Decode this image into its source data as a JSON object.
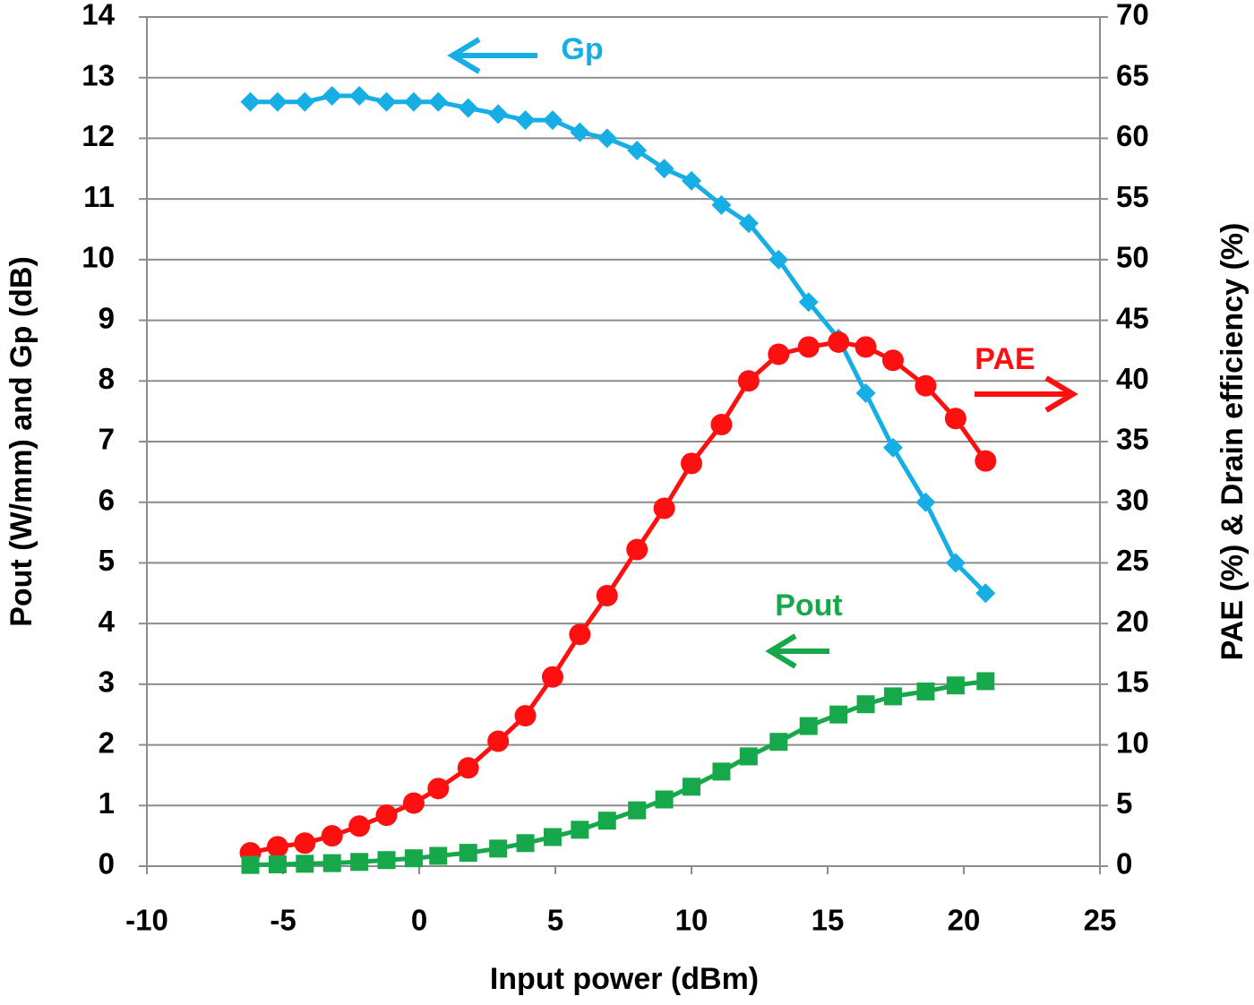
{
  "chart_data": {
    "type": "line",
    "x_label": "Input power (dBm)",
    "y_label": "Pout (W/mm) and Gp (dB)",
    "y2_label": "PAE (%) & Drain efficiency (%)",
    "x": [
      -6.2,
      -5.2,
      -4.2,
      -3.2,
      -2.2,
      -1.2,
      -0.2,
      0.7,
      1.8,
      2.9,
      3.9,
      4.9,
      5.9,
      6.9,
      8.0,
      9.0,
      10.0,
      11.1,
      12.1,
      13.2,
      14.3,
      15.4,
      16.4,
      17.4,
      18.6,
      19.7,
      20.8
    ],
    "series": [
      {
        "name": "Gp",
        "color": "#17aee6",
        "marker": "diamond",
        "values": [
          12.6,
          12.6,
          12.6,
          12.7,
          12.7,
          12.6,
          12.6,
          12.6,
          12.5,
          12.4,
          12.3,
          12.3,
          12.1,
          12.0,
          11.8,
          11.5,
          11.3,
          10.9,
          10.6,
          10.0,
          9.3,
          8.7,
          7.8,
          6.9,
          6.0,
          5.0,
          4.5
        ]
      },
      {
        "name": "PAE",
        "color": "#ff1010",
        "marker": "circle",
        "axis": "y2",
        "values": [
          1.1,
          1.6,
          1.9,
          2.5,
          3.3,
          4.2,
          5.2,
          6.4,
          8.1,
          10.3,
          12.4,
          15.6,
          19.1,
          22.3,
          26.1,
          29.5,
          33.2,
          36.4,
          40.0,
          42.2,
          42.8,
          43.2,
          42.8,
          41.7,
          39.6,
          36.9,
          33.4
        ]
      },
      {
        "name": "Pout",
        "color": "#17a84b",
        "marker": "square",
        "values": [
          0.02,
          0.03,
          0.04,
          0.05,
          0.07,
          0.1,
          0.13,
          0.17,
          0.22,
          0.29,
          0.38,
          0.48,
          0.6,
          0.75,
          0.92,
          1.1,
          1.31,
          1.56,
          1.81,
          2.05,
          2.31,
          2.5,
          2.67,
          2.8,
          2.88,
          2.98,
          3.05
        ]
      }
    ],
    "xlim": [
      -10,
      25
    ],
    "xticks": [
      -10,
      -5,
      0,
      5,
      10,
      15,
      20,
      25
    ],
    "ylim": [
      0,
      14
    ],
    "yticks": [
      0,
      1,
      2,
      3,
      4,
      5,
      6,
      7,
      8,
      9,
      10,
      11,
      12,
      13,
      14
    ],
    "y2lim": [
      0,
      70
    ],
    "y2ticks": [
      0,
      5,
      10,
      15,
      20,
      25,
      30,
      35,
      40,
      45,
      50,
      55,
      60,
      65,
      70
    ],
    "grid": true
  }
}
